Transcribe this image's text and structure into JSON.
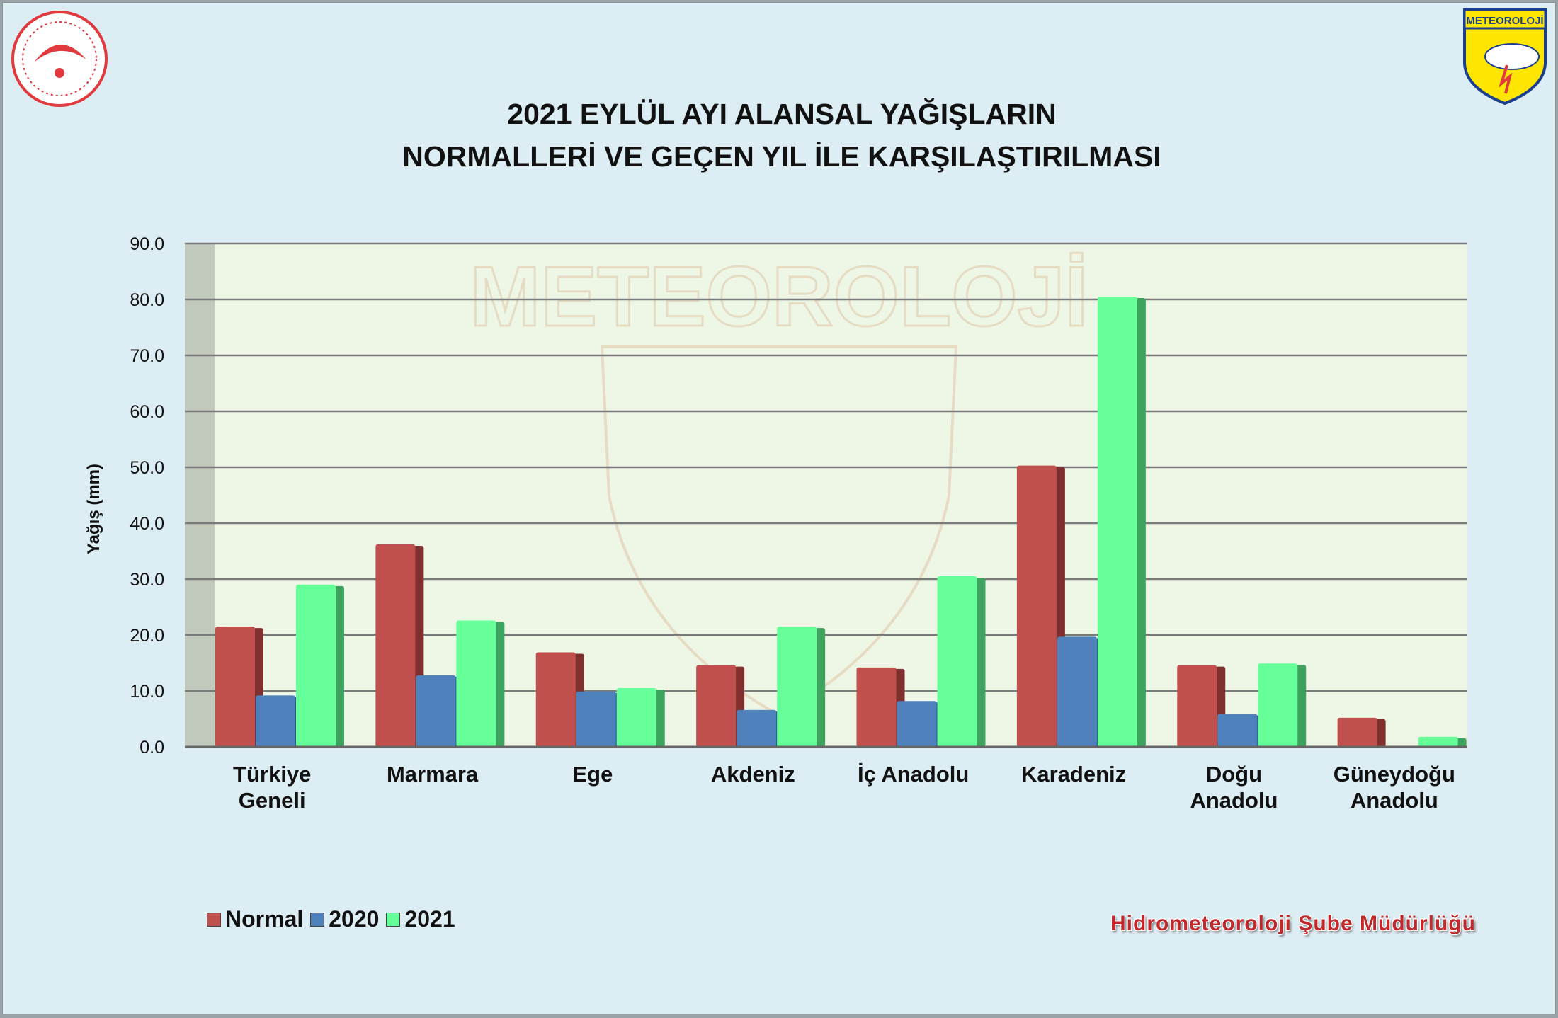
{
  "title_line1": "2021 EYLÜL AYI ALANSAL YAĞIŞLARIN",
  "title_line2": "NORMALLERİ VE GEÇEN YIL İLE KARŞILAŞTIRILMASI",
  "logo_right_text": "METEOROLOJİ",
  "watermark_text": "METEOROLOJİ",
  "footer": "Hidrometeoroloji Şube Müdürlüğü",
  "colors": {
    "Normal": "#c0504d",
    "2020": "#4f81bd",
    "2021": "#66ff99",
    "plot_bg": "#eef7e6",
    "page_bg": "#dcedf3"
  },
  "chart_data": {
    "type": "bar",
    "title": "2021 EYLÜL AYI ALANSAL YAĞIŞLARIN NORMALLERİ VE GEÇEN YIL İLE KARŞILAŞTIRILMASI",
    "xlabel": "",
    "ylabel": "Yağış (mm)",
    "ylim": [
      0,
      90
    ],
    "yticks": [
      "0.0",
      "10.0",
      "20.0",
      "30.0",
      "40.0",
      "50.0",
      "60.0",
      "70.0",
      "80.0",
      "90.0"
    ],
    "grid": true,
    "legend": "bottom-left",
    "categories": [
      [
        "Türkiye",
        "Geneli"
      ],
      [
        "Marmara"
      ],
      [
        "Ege"
      ],
      [
        "Akdeniz"
      ],
      [
        "İç Anadolu"
      ],
      [
        "Karadeniz"
      ],
      [
        "Doğu",
        "Anadolu"
      ],
      [
        "Güneydoğu",
        "Anadolu"
      ]
    ],
    "series": [
      {
        "name": "Normal",
        "values": [
          21.5,
          36.2,
          16.9,
          14.6,
          14.2,
          50.3,
          14.6,
          5.2
        ]
      },
      {
        "name": "2020",
        "values": [
          9.2,
          12.8,
          9.9,
          6.6,
          8.2,
          19.7,
          5.9,
          0.0
        ]
      },
      {
        "name": "2021",
        "values": [
          29.0,
          22.6,
          10.5,
          21.5,
          30.5,
          80.5,
          14.9,
          1.8
        ]
      }
    ]
  }
}
